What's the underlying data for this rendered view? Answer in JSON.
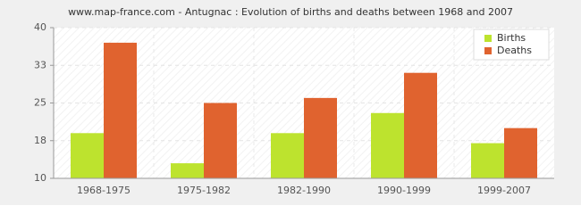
{
  "chart_data": {
    "type": "bar",
    "title": "www.map-france.com - Antugnac : Evolution of births and deaths between 1968 and 2007",
    "categories": [
      "1968-1975",
      "1975-1982",
      "1982-1990",
      "1990-1999",
      "1999-2007"
    ],
    "series": [
      {
        "name": "Births",
        "color": "#bde32e",
        "values": [
          19,
          13,
          19,
          23,
          17
        ]
      },
      {
        "name": "Deaths",
        "color": "#e0632f",
        "values": [
          37,
          25,
          26,
          31,
          20
        ]
      }
    ],
    "ylim": [
      10,
      40
    ],
    "yticks": [
      10,
      {
        "value": 17.5,
        "label": "18"
      },
      25,
      {
        "value": 32.5,
        "label": "33"
      },
      40
    ],
    "grid": true,
    "legend": "top-right"
  }
}
